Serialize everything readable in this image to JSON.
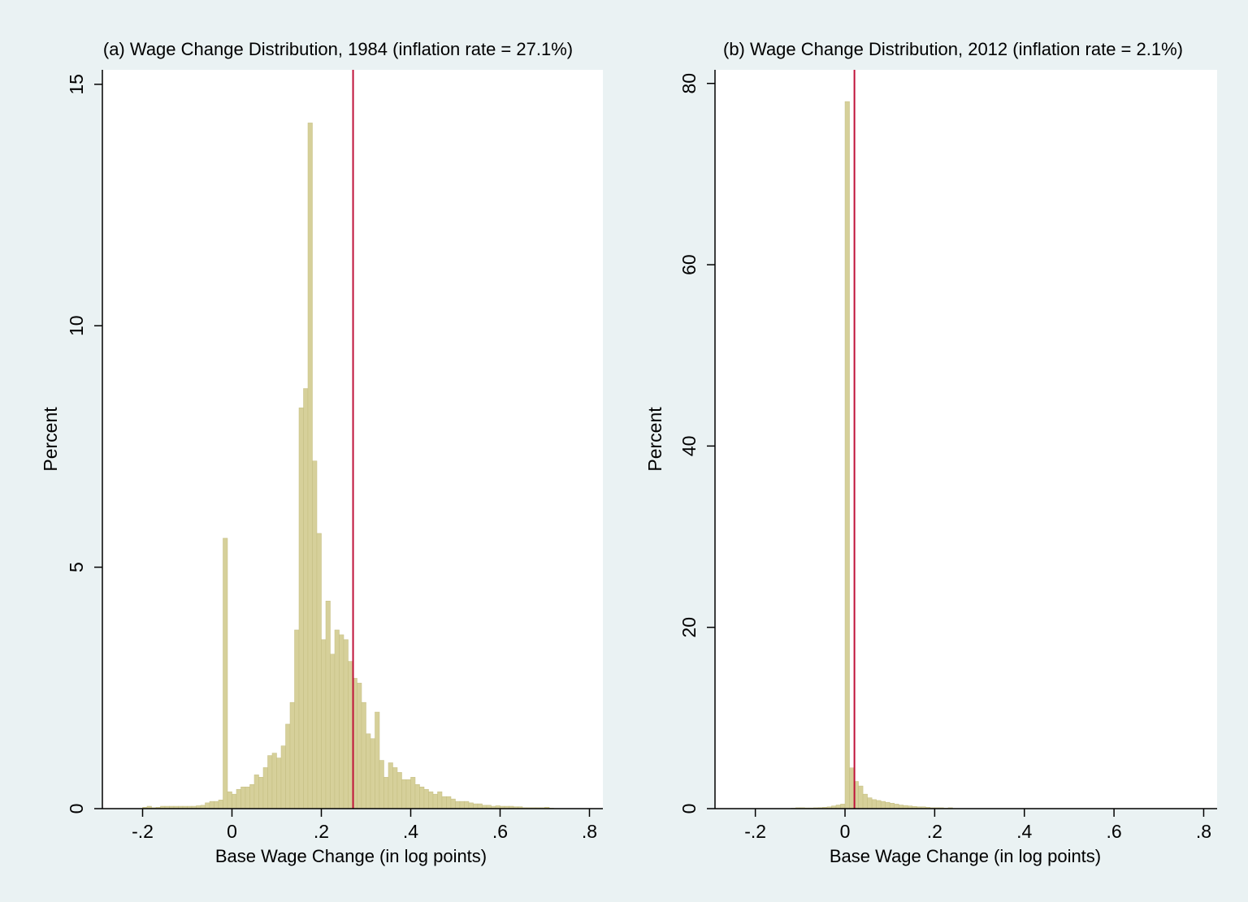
{
  "colors": {
    "figure_background": "#eaf2f3",
    "plot_background": "#ffffff",
    "bar_fill": "#d6d09a",
    "bar_stroke": "#c4bd80",
    "reference_line": "#c0123a",
    "axis": "#000000"
  },
  "chart_data": [
    {
      "type": "bar",
      "title": "(a) Wage Change Distribution, 1984 (inflation rate = 27.1%)",
      "xlabel": "Base Wage Change (in log points)",
      "ylabel": "Percent",
      "xlim": [
        -0.29,
        0.83
      ],
      "ylim": [
        0,
        15.3
      ],
      "x_ticks": [
        -0.2,
        0,
        0.2,
        0.4,
        0.6,
        0.8
      ],
      "x_tick_labels": [
        "-.2",
        "0",
        ".2",
        ".4",
        ".6",
        ".8"
      ],
      "y_ticks": [
        0,
        5,
        10,
        15
      ],
      "y_tick_labels": [
        "0",
        "5",
        "10",
        "15"
      ],
      "grid": false,
      "bin_width": 0.01,
      "bins_left": [
        -0.2,
        -0.19,
        -0.18,
        -0.17,
        -0.16,
        -0.15,
        -0.14,
        -0.13,
        -0.12,
        -0.11,
        -0.1,
        -0.09,
        -0.08,
        -0.07,
        -0.06,
        -0.05,
        -0.04,
        -0.03,
        -0.02,
        -0.01,
        0,
        0.01,
        0.02,
        0.03,
        0.04,
        0.05,
        0.06,
        0.07,
        0.08,
        0.09,
        0.1,
        0.11,
        0.12,
        0.13,
        0.14,
        0.15,
        0.16,
        0.17,
        0.18,
        0.19,
        0.2,
        0.21,
        0.22,
        0.23,
        0.24,
        0.25,
        0.26,
        0.27,
        0.28,
        0.29,
        0.3,
        0.31,
        0.32,
        0.33,
        0.34,
        0.35,
        0.36,
        0.37,
        0.38,
        0.39,
        0.4,
        0.41,
        0.42,
        0.43,
        0.44,
        0.45,
        0.46,
        0.47,
        0.48,
        0.49,
        0.5,
        0.51,
        0.52,
        0.53,
        0.54,
        0.55,
        0.56,
        0.57,
        0.58,
        0.59,
        0.6,
        0.61,
        0.62,
        0.63,
        0.64,
        0.65,
        0.66,
        0.67,
        0.68,
        0.69,
        0.7,
        0.71
      ],
      "values": [
        0.03,
        0.05,
        0.02,
        0.03,
        0.05,
        0.05,
        0.05,
        0.05,
        0.05,
        0.05,
        0.05,
        0.05,
        0.06,
        0.07,
        0.12,
        0.15,
        0.15,
        0.18,
        5.6,
        0.35,
        0.3,
        0.4,
        0.45,
        0.45,
        0.5,
        0.7,
        0.65,
        0.85,
        1.1,
        1.15,
        1.05,
        1.3,
        1.75,
        2.2,
        3.7,
        8.3,
        8.7,
        14.2,
        7.2,
        5.7,
        3.5,
        4.3,
        3.2,
        3.7,
        3.6,
        3.5,
        3.05,
        2.7,
        2.6,
        2.2,
        1.55,
        1.45,
        2.0,
        1.0,
        0.65,
        0.95,
        0.85,
        0.75,
        0.6,
        0.6,
        0.65,
        0.5,
        0.45,
        0.4,
        0.35,
        0.3,
        0.35,
        0.25,
        0.25,
        0.2,
        0.15,
        0.15,
        0.15,
        0.12,
        0.1,
        0.1,
        0.07,
        0.07,
        0.05,
        0.06,
        0.05,
        0.05,
        0.05,
        0.04,
        0.04,
        0.02,
        0.02,
        0.02,
        0.02,
        0.02,
        0.03,
        0.01
      ],
      "reference_line_x": 0.271
    },
    {
      "type": "bar",
      "title": "(b) Wage Change Distribution, 2012 (inflation rate = 2.1%)",
      "xlabel": "Base Wage Change (in log points)",
      "ylabel": "Percent",
      "xlim": [
        -0.29,
        0.83
      ],
      "ylim": [
        0,
        81.5
      ],
      "x_ticks": [
        -0.2,
        0,
        0.2,
        0.4,
        0.6,
        0.8
      ],
      "x_tick_labels": [
        "-.2",
        "0",
        ".2",
        ".4",
        ".6",
        ".8"
      ],
      "y_ticks": [
        0,
        20,
        40,
        60,
        80
      ],
      "y_tick_labels": [
        "0",
        "20",
        "40",
        "60",
        "80"
      ],
      "grid": false,
      "bin_width": 0.01,
      "bins_left": [
        -0.12,
        -0.11,
        -0.1,
        -0.09,
        -0.08,
        -0.07,
        -0.06,
        -0.05,
        -0.04,
        -0.03,
        -0.02,
        -0.01,
        0,
        0.01,
        0.02,
        0.03,
        0.04,
        0.05,
        0.06,
        0.07,
        0.08,
        0.09,
        0.1,
        0.11,
        0.12,
        0.13,
        0.14,
        0.15,
        0.16,
        0.17,
        0.18,
        0.19,
        0.2,
        0.21,
        0.22,
        0.23
      ],
      "values": [
        0.05,
        0.1,
        0.1,
        0.08,
        0.08,
        0.1,
        0.12,
        0.15,
        0.2,
        0.3,
        0.4,
        0.5,
        78.0,
        4.5,
        3.0,
        2.5,
        1.6,
        1.2,
        1.0,
        0.9,
        0.8,
        0.7,
        0.6,
        0.5,
        0.4,
        0.35,
        0.3,
        0.25,
        0.2,
        0.2,
        0.15,
        0.1,
        0.1,
        0.1,
        0.05,
        0.1
      ],
      "reference_line_x": 0.021
    }
  ]
}
